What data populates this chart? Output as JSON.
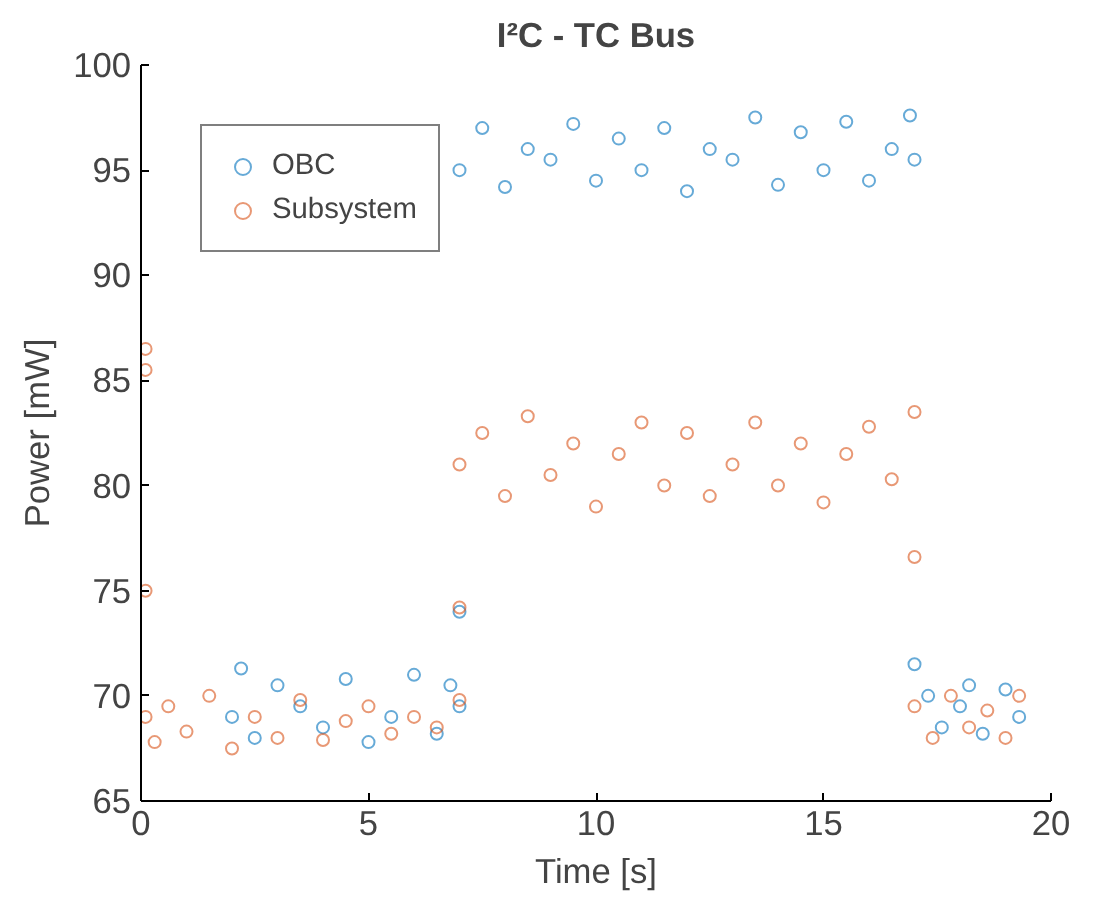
{
  "chart_data": {
    "type": "scatter",
    "title": "I²C - TC Bus",
    "xlabel": "Time [s]",
    "ylabel": "Power [mW]",
    "xlim": [
      0,
      20
    ],
    "xticks": [
      0,
      5,
      10,
      15,
      20
    ],
    "ylim": [
      65,
      100
    ],
    "yticks": [
      65,
      70,
      75,
      80,
      85,
      90,
      95,
      100
    ],
    "grid": false,
    "legend": "top left",
    "marker": "circle",
    "series": [
      {
        "name": "OBC",
        "color": "#0072bd",
        "x": [
          2.0,
          2.2,
          2.5,
          3,
          3.5,
          4,
          4.5,
          5,
          5.5,
          6,
          6.5,
          6.8,
          7,
          7,
          7.0,
          7.5,
          8,
          8.5,
          9,
          9.5,
          10,
          10.5,
          11,
          11.5,
          12,
          12.5,
          13,
          13.5,
          14,
          14.5,
          15,
          15.5,
          16,
          16.5,
          17,
          16.9,
          17,
          17.3,
          17.6,
          18,
          18.2,
          18.5,
          19,
          19.3
        ],
        "values": [
          69,
          71.3,
          68,
          70.5,
          69.5,
          68.5,
          70.8,
          67.8,
          69,
          71,
          68.2,
          70.5,
          69.5,
          74,
          95,
          97,
          94.2,
          96,
          95.5,
          97.2,
          94.5,
          96.5,
          95,
          97,
          94,
          96,
          95.5,
          97.5,
          94.3,
          96.8,
          95,
          97.3,
          94.5,
          96,
          95.5,
          97.6,
          71.5,
          70,
          68.5,
          69.5,
          70.5,
          68.2,
          70.3,
          69
        ]
      },
      {
        "name": "Subsystem",
        "color": "#d95319",
        "x": [
          0.1,
          0.1,
          0.1,
          0.1,
          0.3,
          0.6,
          1,
          1.5,
          2,
          2.5,
          3,
          3.5,
          4,
          4.5,
          5,
          5.5,
          6,
          6.5,
          7,
          7,
          7,
          7.5,
          8,
          8.5,
          9,
          9.5,
          10,
          10.5,
          11,
          11.5,
          12,
          12.5,
          13,
          13.5,
          14,
          14.5,
          15,
          15.5,
          16,
          16.5,
          17,
          17,
          17,
          17.4,
          17.8,
          18.2,
          18.6,
          19,
          19.3
        ],
        "values": [
          86.5,
          85.5,
          75,
          69,
          67.8,
          69.5,
          68.3,
          70,
          67.5,
          69,
          68,
          69.8,
          67.9,
          68.8,
          69.5,
          68.2,
          69,
          68.5,
          69.8,
          74.2,
          81,
          82.5,
          79.5,
          83.3,
          80.5,
          82,
          79,
          81.5,
          83,
          80,
          82.5,
          79.5,
          81,
          83,
          80,
          82,
          79.2,
          81.5,
          82.8,
          80.3,
          83.5,
          76.6,
          69.5,
          68,
          70,
          68.5,
          69.3,
          68,
          70
        ]
      }
    ]
  }
}
